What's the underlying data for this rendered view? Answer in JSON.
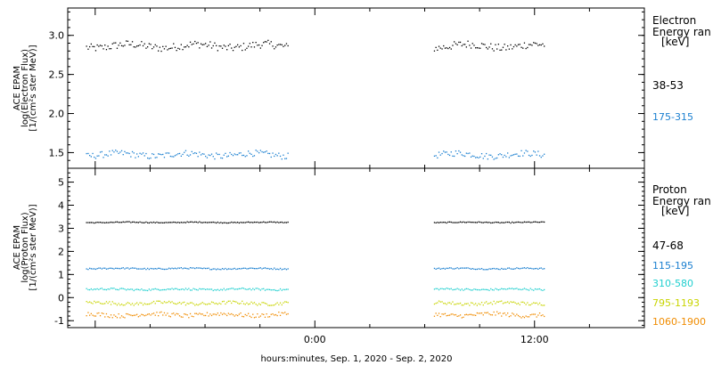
{
  "chart_data": [
    {
      "type": "scatter",
      "panel": "electron",
      "ylabel_lines": [
        "ACE EPAM",
        "log(Electron Flux)",
        "[1/(cm²s ster MeV)]"
      ],
      "ylim": [
        1.3,
        3.35
      ],
      "yticks": [
        1.5,
        2.0,
        2.5,
        3.0
      ],
      "ytick_labels": [
        "1.5",
        "2.0",
        "2.5",
        "3.0"
      ],
      "legend_title": [
        "Electron",
        "Energy ran",
        "[keV]"
      ],
      "series": [
        {
          "name": "38-53",
          "color": "#000000",
          "base": 2.87,
          "noise": 0.05
        },
        {
          "name": "175-315",
          "color": "#1a7fd0",
          "base": 1.48,
          "noise": 0.04
        }
      ]
    },
    {
      "type": "scatter",
      "panel": "proton",
      "ylabel_lines": [
        "ACE EPAM",
        "log(Proton Flux)",
        "[1/(cm²s ster MeV)]"
      ],
      "ylim": [
        -1.3,
        5.6
      ],
      "yticks": [
        -1,
        0,
        1,
        2,
        3,
        4,
        5
      ],
      "ytick_labels": [
        "-1",
        "0",
        "1",
        "2",
        "3",
        "4",
        "5"
      ],
      "legend_title": [
        "Proton",
        "Energy ran",
        "[keV]"
      ],
      "series": [
        {
          "name": "47-68",
          "color": "#000000",
          "base": 3.28,
          "noise": 0.02
        },
        {
          "name": "115-195",
          "color": "#1a7fd0",
          "base": 1.28,
          "noise": 0.03
        },
        {
          "name": "310-580",
          "color": "#20cfcf",
          "base": 0.38,
          "noise": 0.04
        },
        {
          "name": "795-1193",
          "color": "#c8d400",
          "base": -0.22,
          "noise": 0.07
        },
        {
          "name": "1060-1900",
          "color": "#f08c00",
          "base": -0.72,
          "noise": 0.09
        }
      ]
    }
  ],
  "x_axis": {
    "tick_labels": [
      "0:00",
      "12:00"
    ],
    "xlabel": "hours:minutes, Sep.  1, 2020 - Sep.  2, 2020",
    "range_hours": [
      -13.5,
      18
    ],
    "label_ticks_hours": [
      0,
      12
    ],
    "data_segments_hours": [
      [
        -12.5,
        -1.5
      ],
      [
        6.5,
        12.5
      ]
    ]
  }
}
